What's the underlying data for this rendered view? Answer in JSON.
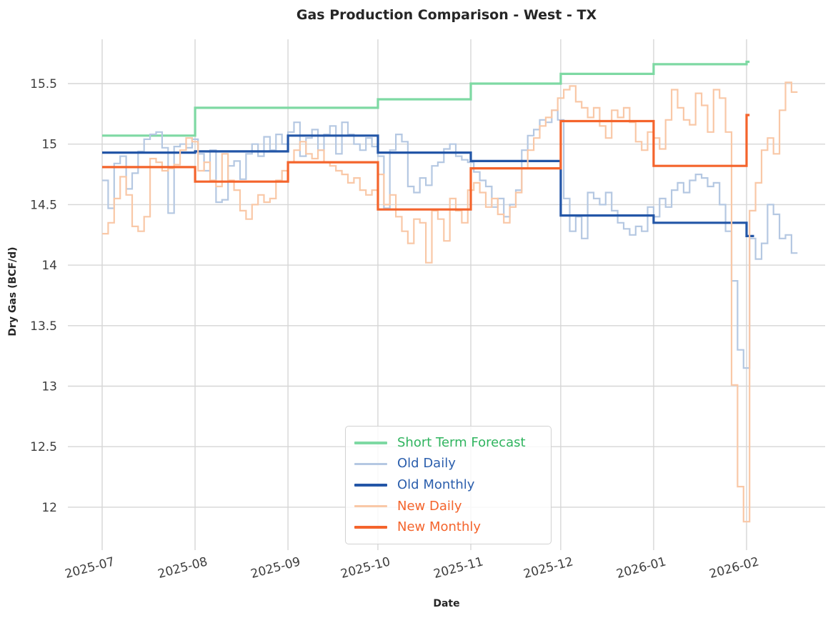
{
  "chart_data": {
    "type": "line",
    "title": "Gas Production Comparison - West - TX",
    "xlabel": "Date",
    "ylabel": "Dry Gas (BCF/d)",
    "x_tick_labels": [
      "2025-07",
      "2025-08",
      "2025-09",
      "2025-10",
      "2025-11",
      "2025-12",
      "2026-01",
      "2026-02"
    ],
    "y_tick_labels": [
      "15.5",
      "15",
      "14.5",
      "14",
      "13.5",
      "13",
      "12.5",
      "12"
    ],
    "y_tick_values": [
      15.5,
      15.0,
      14.5,
      14.0,
      13.5,
      13.0,
      12.5,
      12.0
    ],
    "ylim": [
      11.64,
      15.87
    ],
    "xlim_days_from_2025_07_01": [
      -11.4,
      241.2
    ],
    "month_start_days": [
      0,
      31,
      62,
      92,
      123,
      153,
      184,
      215
    ],
    "grid": "on",
    "legend_position": "lower-center",
    "colors": {
      "gridline": "#d6d6d6",
      "title_text": "#262626",
      "axis_label_text": "#262626",
      "tick_text": "#3d3d3d",
      "legend_border": "#d2d2d2"
    },
    "series": [
      {
        "name": "Short Term Forecast",
        "kind": "monthly-step",
        "color": "#7ed9a3",
        "label_color": "#30b45f",
        "line_width": 3.2,
        "values": [
          15.07,
          15.3,
          15.3,
          15.37,
          15.5,
          15.58,
          15.66,
          15.68
        ],
        "end_day": 216
      },
      {
        "name": "Old Daily",
        "kind": "daily-step",
        "color": "#b5c8e2",
        "label_color": "#2c5fad",
        "line_width": 2.2,
        "start_day": 0,
        "interval_days": 2,
        "values": [
          14.7,
          14.47,
          14.84,
          14.9,
          14.63,
          14.76,
          14.94,
          15.04,
          15.08,
          15.1,
          14.97,
          14.43,
          14.98,
          15.0,
          14.97,
          15.04,
          14.92,
          14.78,
          14.95,
          14.52,
          14.54,
          14.82,
          14.86,
          14.71,
          14.92,
          15.0,
          14.9,
          15.06,
          14.95,
          15.08,
          15.0,
          15.1,
          15.18,
          14.9,
          15.05,
          15.12,
          14.95,
          15.08,
          15.15,
          14.92,
          15.18,
          15.08,
          15.0,
          14.95,
          15.05,
          14.98,
          14.9,
          14.47,
          14.95,
          15.08,
          15.02,
          14.65,
          14.6,
          14.72,
          14.66,
          14.82,
          14.85,
          14.96,
          15.0,
          14.9,
          14.87,
          14.85,
          14.77,
          14.7,
          14.65,
          14.48,
          14.55,
          14.4,
          14.5,
          14.62,
          14.95,
          15.07,
          15.12,
          15.2,
          15.18,
          15.28,
          15.2,
          14.55,
          14.28,
          14.4,
          14.22,
          14.6,
          14.55,
          14.5,
          14.6,
          14.45,
          14.35,
          14.3,
          14.25,
          14.32,
          14.28,
          14.48,
          14.4,
          14.55,
          14.48,
          14.62,
          14.68,
          14.6,
          14.7,
          14.75,
          14.72,
          14.65,
          14.68,
          14.5,
          14.28,
          13.87,
          13.3,
          13.15,
          14.22,
          14.05,
          14.18,
          14.5,
          14.42,
          14.22,
          14.25,
          14.1
        ]
      },
      {
        "name": "Old Monthly",
        "kind": "monthly-step",
        "color": "#2356a7",
        "label_color": "#2c5fad",
        "line_width": 3.2,
        "values": [
          14.93,
          14.94,
          15.07,
          14.93,
          14.86,
          14.41,
          14.35,
          14.24
        ],
        "end_day": 217.5
      },
      {
        "name": "New Daily",
        "kind": "daily-step",
        "color": "#f9c8a7",
        "label_color": "#f4642c",
        "line_width": 2.2,
        "start_day": 0,
        "interval_days": 2,
        "values": [
          14.26,
          14.35,
          14.55,
          14.73,
          14.58,
          14.32,
          14.28,
          14.4,
          14.88,
          14.85,
          14.78,
          14.8,
          14.83,
          14.95,
          15.05,
          15.02,
          14.78,
          14.85,
          14.7,
          14.65,
          14.92,
          14.7,
          14.62,
          14.45,
          14.38,
          14.5,
          14.58,
          14.52,
          14.55,
          14.7,
          14.78,
          14.85,
          14.95,
          15.02,
          14.92,
          14.88,
          14.95,
          14.85,
          14.82,
          14.78,
          14.75,
          14.68,
          14.72,
          14.62,
          14.58,
          14.62,
          14.75,
          14.5,
          14.58,
          14.4,
          14.28,
          14.18,
          14.38,
          14.35,
          14.02,
          14.45,
          14.38,
          14.2,
          14.55,
          14.45,
          14.35,
          14.62,
          14.68,
          14.6,
          14.48,
          14.55,
          14.42,
          14.35,
          14.48,
          14.6,
          14.8,
          14.95,
          15.05,
          15.15,
          15.22,
          15.28,
          15.38,
          15.45,
          15.48,
          15.35,
          15.3,
          15.22,
          15.3,
          15.15,
          15.05,
          15.28,
          15.22,
          15.3,
          15.18,
          15.02,
          14.95,
          15.1,
          15.05,
          14.96,
          15.2,
          15.45,
          15.3,
          15.2,
          15.16,
          15.42,
          15.32,
          15.1,
          15.45,
          15.38,
          15.1,
          13.01,
          12.17,
          11.88,
          14.45,
          14.68,
          14.95,
          15.05,
          14.92,
          15.28,
          15.51,
          15.43
        ]
      },
      {
        "name": "New Monthly",
        "kind": "monthly-step",
        "color": "#f4642c",
        "label_color": "#f4642c",
        "line_width": 3.2,
        "values": [
          14.81,
          14.69,
          14.85,
          14.46,
          14.8,
          15.19,
          14.82,
          15.24
        ],
        "end_day": 216
      }
    ]
  }
}
